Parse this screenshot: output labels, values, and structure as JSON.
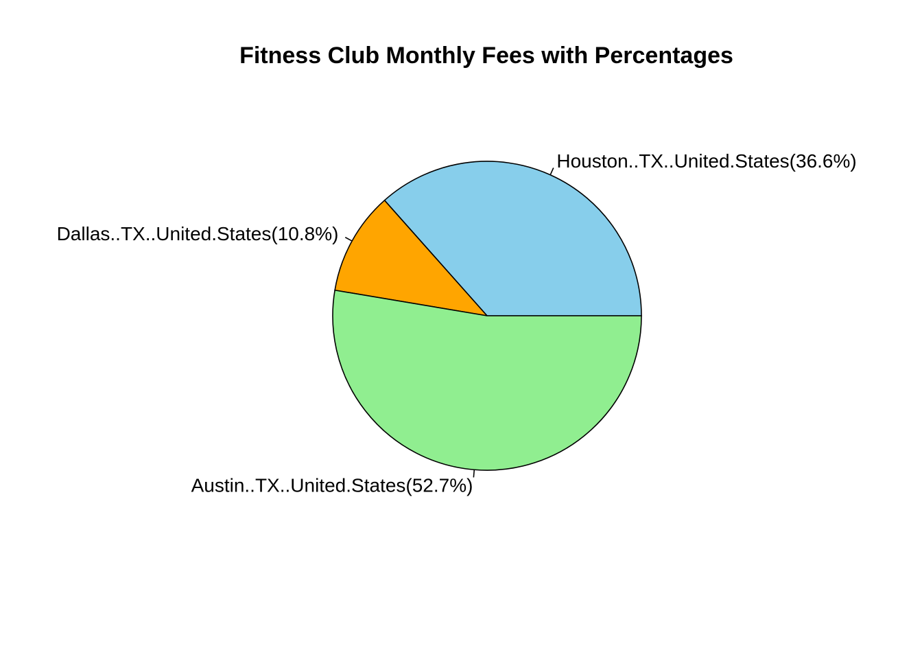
{
  "chart_data": {
    "type": "pie",
    "title": "Fitness Club Monthly Fees with Percentages",
    "slices": [
      {
        "label": "Houston..TX..United.States(36.6%)",
        "value": 36.6,
        "color": "#87CEEB"
      },
      {
        "label": "Dallas..TX..United.States(10.8%)",
        "value": 10.8,
        "color": "#FFA500"
      },
      {
        "label": "Austin..TX..United.States(52.7%)",
        "value": 52.7,
        "color": "#90EE90"
      }
    ],
    "start_angle_deg": 0,
    "direction": "counterclockwise"
  }
}
